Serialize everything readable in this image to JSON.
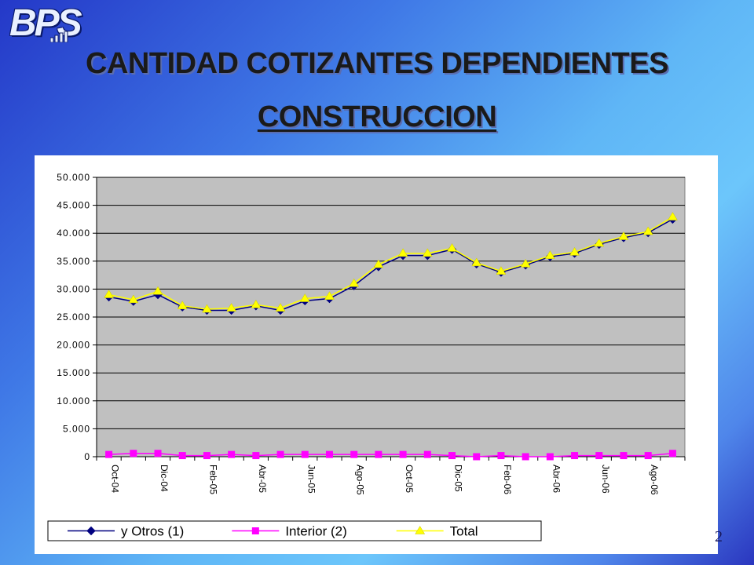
{
  "logo": {
    "text": "BPS",
    "colors": {
      "text": "#e9f0ff",
      "outline": "#0a1a6a"
    }
  },
  "title": {
    "line1": "CANTIDAD COTIZANTES DEPENDIENTES",
    "line2": "CONSTRUCCION"
  },
  "page_number": "2",
  "chart_data": {
    "type": "line",
    "title": "",
    "xlabel": "",
    "ylabel": "",
    "ylim": [
      0,
      50000
    ],
    "y_ticks": [
      0,
      5000,
      10000,
      15000,
      20000,
      25000,
      30000,
      35000,
      40000,
      45000,
      50000
    ],
    "y_tick_labels": [
      "0",
      "5.000",
      "10.000",
      "15.000",
      "20.000",
      "25.000",
      "30.000",
      "35.000",
      "40.000",
      "45.000",
      "50.000"
    ],
    "grid": true,
    "plot_background": "#c0c0c0",
    "legend_position": "bottom",
    "x": [
      "Oct-04",
      "Nov-04",
      "Dic-04",
      "Ene-05",
      "Feb-05",
      "Mar-05",
      "Abr-05",
      "May-05",
      "Jun-05",
      "Jul-05",
      "Ago-05",
      "Sep-05",
      "Oct-05",
      "Nov-05",
      "Dic-05",
      "Ene-06",
      "Feb-06",
      "Mar-06",
      "Abr-06",
      "May-06",
      "Jun-06",
      "Jul-06",
      "Ago-06",
      "Sep-06"
    ],
    "x_tick_labels": [
      "Oct-04",
      "",
      "Dic-04",
      "",
      "Feb-05",
      "",
      "Abr-05",
      "",
      "Jun-05",
      "",
      "Ago-05",
      "",
      "Oct-05",
      "",
      "Dic-05",
      "",
      "Feb-06",
      "",
      "Abr-06",
      "",
      "Jun-06",
      "",
      "Ago-06",
      ""
    ],
    "series": [
      {
        "name": "y Otros (1)",
        "color": "#000080",
        "marker": "diamond",
        "values": [
          28600,
          27800,
          29000,
          26800,
          26200,
          26200,
          27000,
          26200,
          27900,
          28300,
          30600,
          34000,
          36000,
          36000,
          37100,
          34500,
          33000,
          34300,
          35800,
          36400,
          38000,
          39200,
          40100,
          42500
        ]
      },
      {
        "name": "Interior (2)",
        "color": "#ff00ff",
        "marker": "square",
        "values": [
          400,
          600,
          600,
          200,
          200,
          400,
          200,
          400,
          400,
          400,
          400,
          400,
          400,
          400,
          200,
          0,
          200,
          0,
          0,
          200,
          200,
          200,
          200,
          600
        ]
      },
      {
        "name": "Total",
        "color": "#ffff00",
        "marker": "triangle",
        "values": [
          29000,
          28100,
          29600,
          27000,
          26400,
          26600,
          27200,
          26600,
          28300,
          28700,
          31000,
          34400,
          36400,
          36400,
          37300,
          34700,
          33200,
          34500,
          36000,
          36600,
          38200,
          39400,
          40300,
          42900
        ]
      }
    ]
  }
}
